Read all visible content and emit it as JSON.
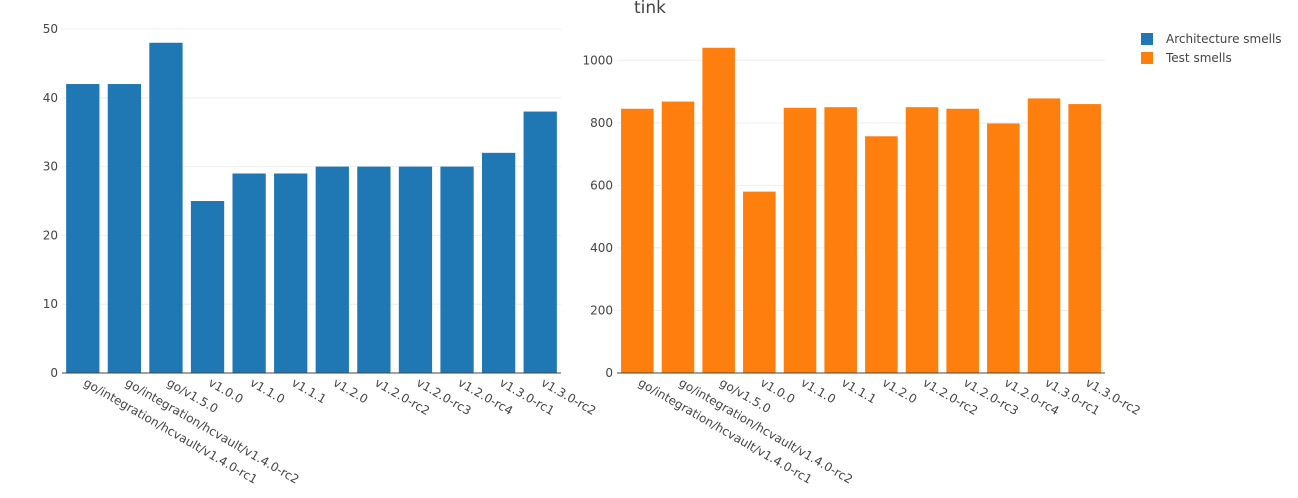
{
  "chart_data": {
    "title": "tink",
    "categories": [
      "go/integration/hcvault/v1.4.0-rc1",
      "go/integration/hcvault/v1.4.0-rc2",
      "go/v1.5.0",
      "v1.0.0",
      "v1.1.0",
      "v1.1.1",
      "v1.2.0",
      "v1.2.0-rc2",
      "v1.2.0-rc3",
      "v1.2.0-rc4",
      "v1.3.0-rc1",
      "v1.3.0-rc2"
    ],
    "legend": {
      "placement": "top-right"
    },
    "subplots": [
      {
        "type": "bar",
        "series": [
          {
            "name": "Architecture smells",
            "color": "#1f77b4",
            "values": [
              42,
              42,
              48,
              25,
              29,
              29,
              30,
              30,
              30,
              30,
              32,
              38
            ]
          }
        ],
        "ylim": [
          0,
          50
        ],
        "yticks": [
          0,
          10,
          20,
          30,
          40,
          50
        ],
        "xlabel": "",
        "ylabel": "",
        "grid": true
      },
      {
        "type": "bar",
        "series": [
          {
            "name": "Test smells",
            "color": "#ff7f0e",
            "values": [
              845,
              868,
              1040,
              580,
              848,
              850,
              757,
              850,
              845,
              798,
              878,
              860
            ]
          }
        ],
        "ylim": [
          0,
          1100
        ],
        "yticks": [
          0,
          200,
          400,
          600,
          800,
          1000
        ],
        "xlabel": "",
        "ylabel": "",
        "grid": true
      }
    ]
  }
}
